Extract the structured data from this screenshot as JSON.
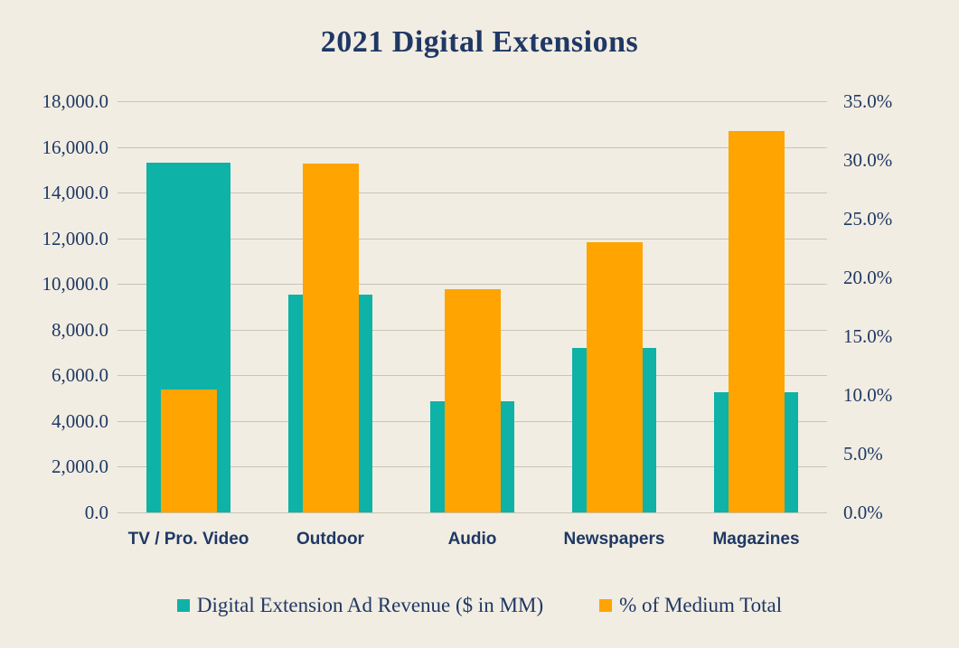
{
  "title": "2021 Digital Extensions",
  "colors": {
    "background": "#F1EDE2",
    "text": "#1F3864",
    "gridline": "#C9C4B7",
    "teal": "#0EB2A7",
    "orange": "#FFA400"
  },
  "chart_data": {
    "type": "bar",
    "title": "2021 Digital Extensions",
    "categories": [
      "TV / Pro. Video",
      "Outdoor",
      "Audio",
      "Newspapers",
      "Magazines"
    ],
    "series": [
      {
        "name": "Digital Extension Ad Revenue ($ in MM)",
        "axis": "left",
        "color": "#0EB2A7",
        "values": [
          15300,
          9550,
          4850,
          7200,
          5250
        ]
      },
      {
        "name": "% of Medium Total",
        "axis": "right",
        "color": "#FFA400",
        "values": [
          10.5,
          29.7,
          19.0,
          23.0,
          32.5
        ]
      }
    ],
    "left_axis": {
      "min": 0,
      "max": 18000,
      "step": 2000,
      "tick_labels": [
        "0.0",
        "2,000.0",
        "4,000.0",
        "6,000.0",
        "8,000.0",
        "10,000.0",
        "12,000.0",
        "14,000.0",
        "16,000.0",
        "18,000.0"
      ]
    },
    "right_axis": {
      "min": 0,
      "max": 35,
      "step": 5,
      "tick_labels": [
        "0.0%",
        "5.0%",
        "10.0%",
        "15.0%",
        "20.0%",
        "25.0%",
        "30.0%",
        "35.0%"
      ]
    },
    "legend": [
      {
        "label": "Digital Extension Ad Revenue ($ in MM)",
        "color": "#0EB2A7"
      },
      {
        "label": "% of Medium Total",
        "color": "#FFA400"
      }
    ],
    "grid": true,
    "legend_position": "bottom"
  }
}
